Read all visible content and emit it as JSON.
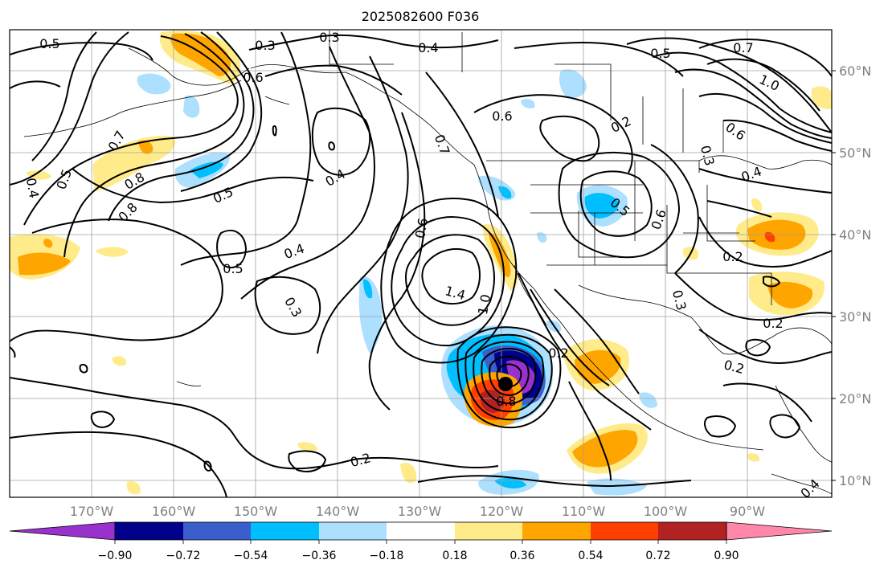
{
  "title": "2025082600 F036",
  "map": {
    "lat_ticks": [
      "60°N",
      "50°N",
      "40°N",
      "30°N",
      "20°N",
      "10°N"
    ],
    "lon_ticks": [
      "170°W",
      "160°W",
      "150°W",
      "140°W",
      "130°W",
      "120°W",
      "110°W",
      "100°W",
      "90°W"
    ],
    "contour_labels": [
      "0.5",
      "0.3",
      "0.3",
      "0.4",
      "0.5",
      "0.7",
      "1.0",
      "0.6",
      "0.6",
      "0.6",
      "0.2",
      "0.7",
      "0.8",
      "0.5",
      "0.4",
      "0.8",
      "0.5",
      "0.4",
      "0.7",
      "0.6",
      "0.5",
      "0.6",
      "0.3",
      "0.4",
      "0.5",
      "0.4",
      "0.3",
      "1.4",
      "1.0",
      "0.2",
      "0.8",
      "0.3",
      "0.2",
      "0.2",
      "0.2",
      "0.2",
      "0.4"
    ],
    "fill_colors": {
      "pos_018": "#FFEB8A",
      "pos_036": "#FFA500",
      "pos_054": "#FF3F00",
      "pos_072": "#B22222",
      "neg_018": "#ADDFFF",
      "neg_036": "#00BFFF",
      "neg_054": "#3A5FCD",
      "neg_072": "#00008B",
      "neg_090": "#9932CC"
    }
  },
  "colorbar": {
    "labels": [
      "−0.90",
      "−0.72",
      "−0.54",
      "−0.36",
      "−0.18",
      "0.18",
      "0.36",
      "0.54",
      "0.72",
      "0.90"
    ],
    "colors": [
      "#9932CC",
      "#00008B",
      "#3A5FCD",
      "#00BFFF",
      "#ADDFFF",
      "#FFFFFF",
      "#FFEB8A",
      "#FFA500",
      "#FF3F00",
      "#B22222",
      "#FF88AA"
    ]
  }
}
